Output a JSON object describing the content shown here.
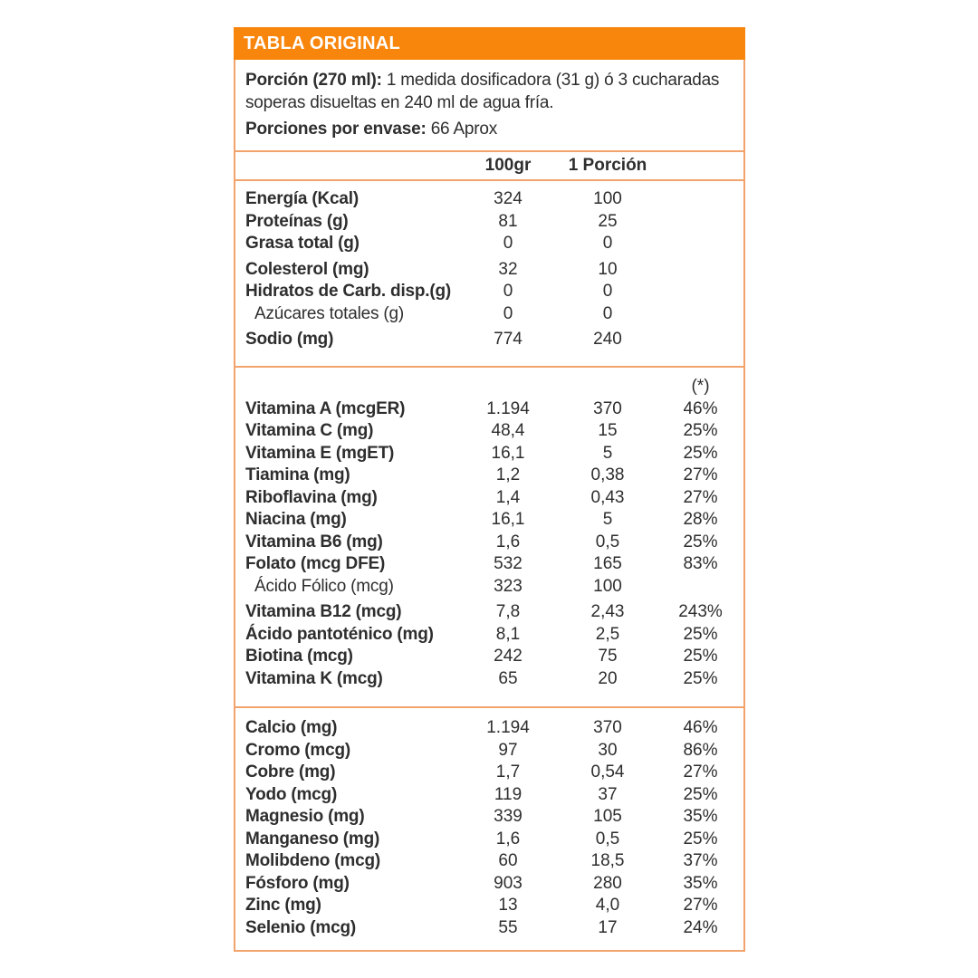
{
  "header": {
    "title": "TABLA ORIGINAL"
  },
  "intro": {
    "portion_bold": "Porción (270 ml):",
    "portion_rest": " 1 medida dosificadora (31 g) ó 3 cucharadas soperas disueltas en 240 ml de agua fría.",
    "servings_bold": "Porciones por envase:",
    "servings_rest": " 66 Aprox"
  },
  "columns": {
    "col1": "100gr",
    "col2": "1 Porción",
    "pct_note": "(*)"
  },
  "colors": {
    "accent": "#F8860D",
    "border": "#F2A36B",
    "text": "#2E2E2E"
  },
  "sections": {
    "macros": {
      "rows": [
        {
          "label": "Energía (Kcal)",
          "v100": "324",
          "vp": "100",
          "pct": ""
        },
        {
          "label": "Proteínas (g)",
          "v100": "81",
          "vp": "25",
          "pct": ""
        },
        {
          "label": "Grasa total (g)",
          "v100": "0",
          "vp": "0",
          "pct": ""
        },
        {
          "label": "Colesterol (mg)",
          "v100": "32",
          "vp": "10",
          "pct": "",
          "gap": true
        },
        {
          "label": "Hidratos de Carb. disp.(g)",
          "v100": "0",
          "vp": "0",
          "pct": ""
        },
        {
          "label": "Azúcares totales (g)",
          "v100": "0",
          "vp": "0",
          "pct": "",
          "indent": true
        },
        {
          "label": "Sodio (mg)",
          "v100": "774",
          "vp": "240",
          "pct": "",
          "gap": true
        }
      ]
    },
    "vitamins": {
      "rows": [
        {
          "label": "Vitamina A (mcgER)",
          "v100": "1.194",
          "vp": "370",
          "pct": "46%"
        },
        {
          "label": "Vitamina C (mg)",
          "v100": "48,4",
          "vp": "15",
          "pct": "25%"
        },
        {
          "label": "Vitamina E (mgET)",
          "v100": "16,1",
          "vp": "5",
          "pct": "25%"
        },
        {
          "label": "Tiamina (mg)",
          "v100": "1,2",
          "vp": "0,38",
          "pct": "27%"
        },
        {
          "label": "Riboflavina (mg)",
          "v100": "1,4",
          "vp": "0,43",
          "pct": "27%"
        },
        {
          "label": "Niacina (mg)",
          "v100": "16,1",
          "vp": "5",
          "pct": "28%"
        },
        {
          "label": "Vitamina B6 (mg)",
          "v100": "1,6",
          "vp": "0,5",
          "pct": "25%"
        },
        {
          "label": "Folato (mcg DFE)",
          "v100": "532",
          "vp": "165",
          "pct": "83%"
        },
        {
          "label": "Ácido Fólico (mcg)",
          "v100": "323",
          "vp": "100",
          "pct": "",
          "indent": true
        },
        {
          "label": "Vitamina B12 (mcg)",
          "v100": "7,8",
          "vp": "2,43",
          "pct": "243%",
          "gap": true
        },
        {
          "label": "Ácido pantoténico (mg)",
          "v100": "8,1",
          "vp": "2,5",
          "pct": "25%"
        },
        {
          "label": "Biotina (mcg)",
          "v100": "242",
          "vp": "75",
          "pct": "25%"
        },
        {
          "label": "Vitamina K (mcg)",
          "v100": "65",
          "vp": "20",
          "pct": "25%"
        }
      ]
    },
    "minerals": {
      "rows": [
        {
          "label": "Calcio (mg)",
          "v100": "1.194",
          "vp": "370",
          "pct": "46%"
        },
        {
          "label": "Cromo (mcg)",
          "v100": "97",
          "vp": "30",
          "pct": "86%"
        },
        {
          "label": "Cobre (mg)",
          "v100": "1,7",
          "vp": "0,54",
          "pct": "27%"
        },
        {
          "label": "Yodo (mcg)",
          "v100": "119",
          "vp": "37",
          "pct": "25%"
        },
        {
          "label": "Magnesio (mg)",
          "v100": "339",
          "vp": "105",
          "pct": "35%"
        },
        {
          "label": "Manganeso (mg)",
          "v100": "1,6",
          "vp": "0,5",
          "pct": "25%"
        },
        {
          "label": "Molibdeno (mcg)",
          "v100": "60",
          "vp": "18,5",
          "pct": "37%"
        },
        {
          "label": "Fósforo (mg)",
          "v100": "903",
          "vp": "280",
          "pct": "35%"
        },
        {
          "label": "Zinc (mg)",
          "v100": "13",
          "vp": "4,0",
          "pct": "27%"
        },
        {
          "label": "Selenio (mcg)",
          "v100": "55",
          "vp": "17",
          "pct": "24%"
        }
      ]
    }
  }
}
